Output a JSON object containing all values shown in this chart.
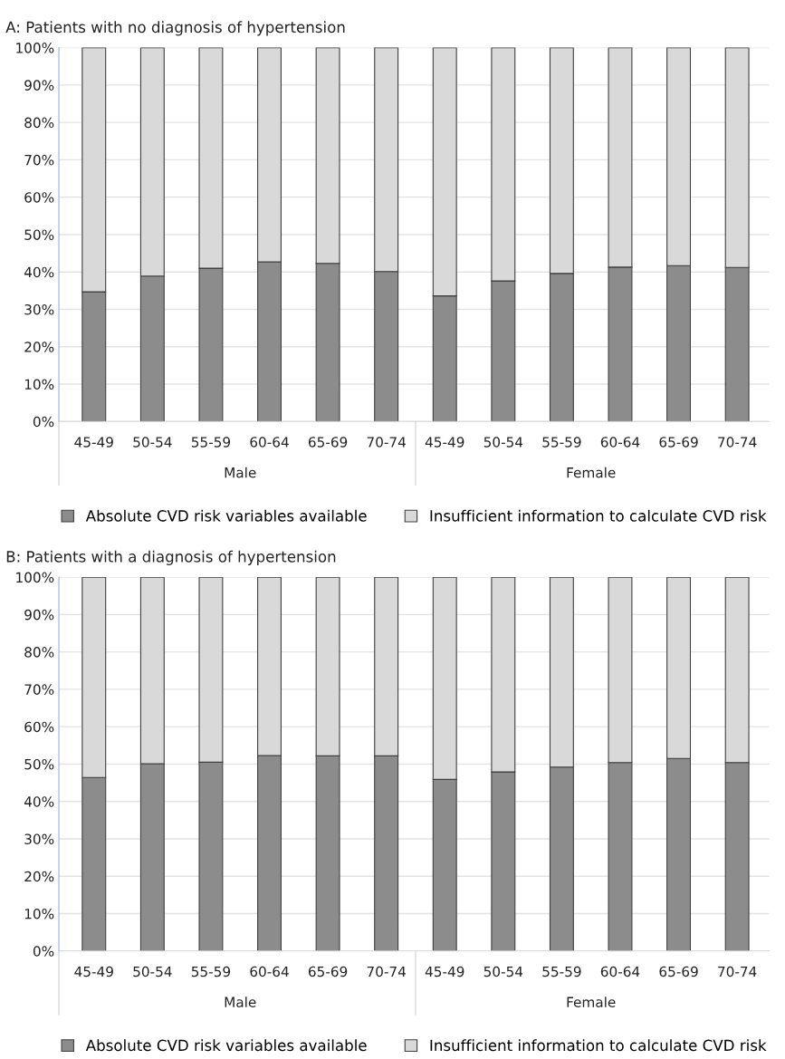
{
  "chart_data": [
    {
      "type": "bar",
      "title": "A: Patients with no diagnosis of hypertension",
      "stacked": true,
      "categories": [
        "45-49",
        "50-54",
        "55-59",
        "60-64",
        "65-69",
        "70-74",
        "45-49",
        "50-54",
        "55-59",
        "60-64",
        "65-69",
        "70-74"
      ],
      "series": [
        {
          "name": "Absolute CVD risk variables available",
          "color": "#8c8c8c",
          "values": [
            34.7,
            38.9,
            41.0,
            42.7,
            42.3,
            40.1,
            33.6,
            37.6,
            39.6,
            41.3,
            41.7,
            41.2
          ]
        },
        {
          "name": "Insufficient information to calculate CVD risk",
          "color": "#d9d9d9",
          "values": [
            65.3,
            61.1,
            59.0,
            57.3,
            57.7,
            59.9,
            66.4,
            62.4,
            60.4,
            58.7,
            58.3,
            58.8
          ]
        }
      ],
      "ylim": [
        0,
        100
      ],
      "yticks": [
        {
          "value": 0,
          "label": "0%"
        },
        {
          "value": 10,
          "label": "10%"
        },
        {
          "value": 20,
          "label": "20%"
        },
        {
          "value": 30,
          "label": "30%"
        },
        {
          "value": 40,
          "label": "40%"
        },
        {
          "value": 50,
          "label": "50%"
        },
        {
          "value": 60,
          "label": "60%"
        },
        {
          "value": 70,
          "label": "70%"
        },
        {
          "value": 80,
          "label": "80%"
        },
        {
          "value": 90,
          "label": "90%"
        },
        {
          "value": 100,
          "label": "100%"
        }
      ],
      "annotations": [
        "Male",
        "Female"
      ],
      "grid": "y",
      "legend": "bottom"
    },
    {
      "type": "bar",
      "title": "B: Patients with a diagnosis of hypertension",
      "stacked": true,
      "categories": [
        "45-49",
        "50-54",
        "55-59",
        "60-64",
        "65-69",
        "70-74",
        "45-49",
        "50-54",
        "55-59",
        "60-64",
        "65-69",
        "70-74"
      ],
      "series": [
        {
          "name": "Absolute CVD risk variables available",
          "color": "#8c8c8c",
          "values": [
            46.4,
            50.1,
            50.5,
            52.3,
            52.2,
            52.2,
            45.9,
            47.9,
            49.2,
            50.4,
            51.5,
            50.4
          ]
        },
        {
          "name": "Insufficient information to calculate CVD risk",
          "color": "#d9d9d9",
          "values": [
            53.6,
            49.9,
            49.5,
            47.7,
            47.8,
            47.8,
            54.1,
            52.1,
            50.8,
            49.6,
            48.5,
            49.6
          ]
        }
      ],
      "ylim": [
        0,
        100
      ],
      "yticks": [
        {
          "value": 0,
          "label": "0%"
        },
        {
          "value": 10,
          "label": "10%"
        },
        {
          "value": 20,
          "label": "20%"
        },
        {
          "value": 30,
          "label": "30%"
        },
        {
          "value": 40,
          "label": "40%"
        },
        {
          "value": 50,
          "label": "50%"
        },
        {
          "value": 60,
          "label": "60%"
        },
        {
          "value": 70,
          "label": "70%"
        },
        {
          "value": 80,
          "label": "80%"
        },
        {
          "value": 90,
          "label": "90%"
        },
        {
          "value": 100,
          "label": "100%"
        }
      ],
      "annotations": [
        "Male",
        "Female"
      ],
      "grid": "y",
      "legend": "bottom"
    }
  ]
}
